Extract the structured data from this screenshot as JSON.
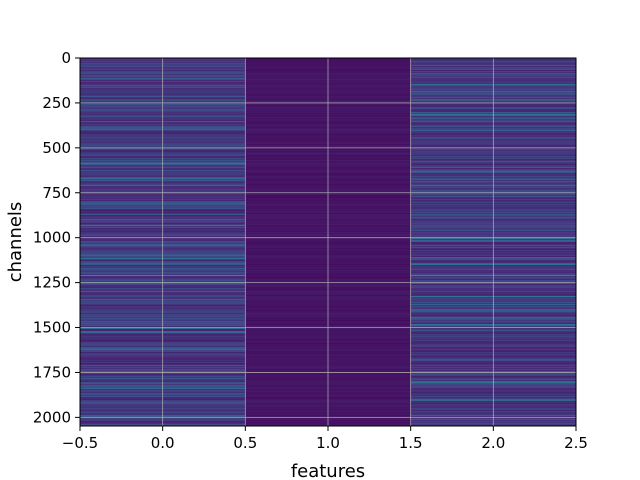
{
  "chart_data": {
    "type": "heatmap",
    "title": "",
    "xlabel": "features",
    "ylabel": "channels",
    "xlim": [
      -0.5,
      2.5
    ],
    "ylim": [
      2048,
      0
    ],
    "y_inverted": true,
    "grid": true,
    "colormap": "viridis",
    "columns": [
      0,
      1,
      2
    ],
    "rows": 2048,
    "column_stats": [
      {
        "feature": 0,
        "typical_level": "low",
        "pattern": "many faint striations with occasional bright rows"
      },
      {
        "feature": 1,
        "typical_level": "very low",
        "pattern": "nearly uniform dark"
      },
      {
        "feature": 2,
        "typical_level": "low",
        "pattern": "many faint striations with occasional bright rows"
      }
    ],
    "bright_rows": [
      {
        "channel": 232,
        "features": [
          0,
          2
        ],
        "intensity": 0.45
      },
      {
        "channel": 930,
        "features": [
          0
        ],
        "intensity": 0.4
      },
      {
        "channel": 1210,
        "features": [
          0,
          2
        ],
        "intensity": 0.6
      },
      {
        "channel": 1255,
        "features": [
          0,
          2
        ],
        "intensity": 0.42
      },
      {
        "channel": 1490,
        "features": [
          0
        ],
        "intensity": 0.38
      },
      {
        "channel": 1745,
        "features": [
          0,
          2
        ],
        "intensity": 0.45
      },
      {
        "channel": 1990,
        "features": [
          0,
          2
        ],
        "intensity": 0.35
      }
    ],
    "x_ticks": [
      -0.5,
      0.0,
      0.5,
      1.0,
      1.5,
      2.0,
      2.5
    ],
    "x_tick_labels": [
      "−0.5",
      "0.0",
      "0.5",
      "1.0",
      "1.5",
      "2.0",
      "2.5"
    ],
    "y_ticks": [
      0,
      250,
      500,
      750,
      1000,
      1250,
      1500,
      1750,
      2000
    ],
    "y_tick_labels": [
      "0",
      "250",
      "500",
      "750",
      "1000",
      "1250",
      "1500",
      "1750",
      "2000"
    ]
  }
}
